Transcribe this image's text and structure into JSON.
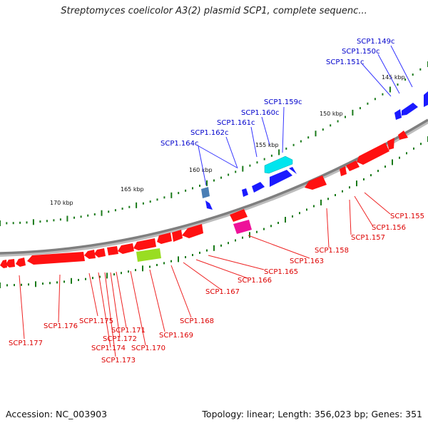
{
  "title": "Streptomyces coelicolor A3(2) plasmid SCP1, complete sequenc...",
  "footer": {
    "accession": "Accession: NC_003903",
    "summary": "Topology: linear; Length: 356,023 bp; Genes: 351"
  },
  "colors": {
    "backbone": "#808080",
    "forward_gene": "#1a1aff",
    "reverse_gene": "#ff0000",
    "forward_label": "#0000cc",
    "reverse_label": "#dd0000",
    "tick": "#1a7a1a",
    "special_cyan": "#00e5ee",
    "special_magenta": "#ee1199",
    "special_green": "#99dd22",
    "special_steel": "#4682b4"
  },
  "kbp_labels": [
    "145 kbp",
    "150 kbp",
    "155 kbp",
    "160 kbp",
    "165 kbp",
    "170 kbp"
  ],
  "forward_labels": [
    "SCP1.149c",
    "SCP1.150c",
    "SCP1.151c",
    "SCP1.159c",
    "SCP1.160c",
    "SCP1.161c",
    "SCP1.162c",
    "SCP1.164c"
  ],
  "reverse_labels": [
    "SCP1.155",
    "SCP1.156",
    "SCP1.157",
    "SCP1.158",
    "SCP1.163",
    "SCP1.165",
    "SCP1.166",
    "SCP1.167",
    "SCP1.168",
    "SCP1.169",
    "SCP1.170",
    "SCP1.171",
    "SCP1.172",
    "SCP1.173",
    "SCP1.174",
    "SCP1.175",
    "SCP1.176",
    "SCP1.177"
  ]
}
